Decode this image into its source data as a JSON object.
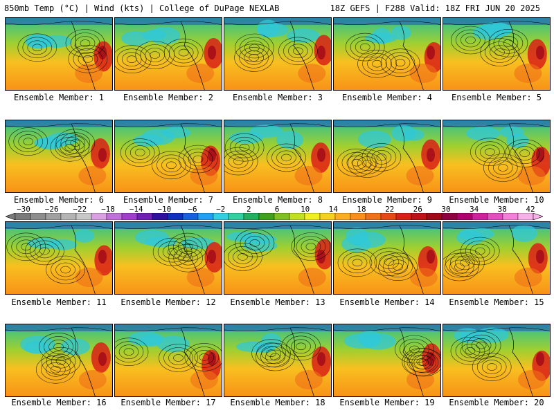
{
  "header": {
    "left_title": "850mb Temp (°C) | Wind (kts) | College of DuPage NEXLAB",
    "right_title": "18Z GEFS | F288 Valid: 18Z FRI JUN 20 2025"
  },
  "members": [
    {
      "label": "Ensemble Member: 1"
    },
    {
      "label": "Ensemble Member: 2"
    },
    {
      "label": "Ensemble Member: 3"
    },
    {
      "label": "Ensemble Member: 4"
    },
    {
      "label": "Ensemble Member: 5"
    },
    {
      "label": "Ensemble Member: 6"
    },
    {
      "label": "Ensemble Member: 7"
    },
    {
      "label": "Ensemble Member: 8"
    },
    {
      "label": "Ensemble Member: 9"
    },
    {
      "label": "Ensemble Member: 10"
    },
    {
      "label": "Ensemble Member: 11"
    },
    {
      "label": "Ensemble Member: 12"
    },
    {
      "label": "Ensemble Member: 13"
    },
    {
      "label": "Ensemble Member: 14"
    },
    {
      "label": "Ensemble Member: 15"
    },
    {
      "label": "Ensemble Member: 16"
    },
    {
      "label": "Ensemble Member: 17"
    },
    {
      "label": "Ensemble Member: 18"
    },
    {
      "label": "Ensemble Member: 19"
    },
    {
      "label": "Ensemble Member: 20"
    }
  ],
  "colorbar": {
    "tick_labels": [
      "−30",
      "−26",
      "−22",
      "−18",
      "−14",
      "−10",
      "−6",
      "−2",
      "2",
      "6",
      "10",
      "14",
      "18",
      "22",
      "26",
      "30",
      "34",
      "38",
      "42"
    ],
    "colors": [
      "#7a7a7a",
      "#8e8e8e",
      "#a0a0a0",
      "#b4b4b4",
      "#c8c8c8",
      "#d8a0e0",
      "#c070d8",
      "#a040c8",
      "#7020b0",
      "#3010a0",
      "#1030c0",
      "#1860e0",
      "#20a0f0",
      "#30d0e0",
      "#30d0a0",
      "#20b060",
      "#40a020",
      "#80c020",
      "#c0e020",
      "#f0f020",
      "#f8d020",
      "#f8b020",
      "#f89018",
      "#f07018",
      "#e84818",
      "#d82018",
      "#c01018",
      "#a00818",
      "#900040",
      "#b00070",
      "#d020a0",
      "#e050c0",
      "#f080d8",
      "#f8b0e8"
    ]
  }
}
